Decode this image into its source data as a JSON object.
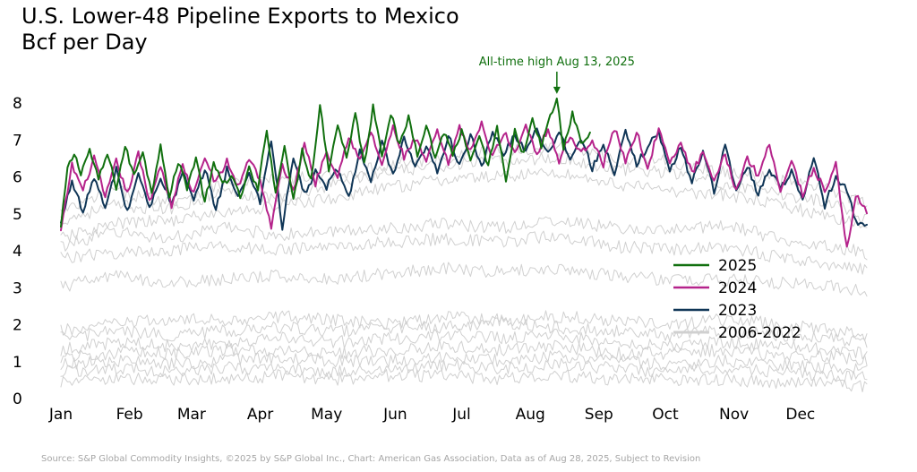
{
  "title_line1": "U.S. Lower-48 Pipeline Exports to Mexico",
  "title_line2": "Bcf per Day",
  "source": "Source: S&P Global Commodity Insights, ©2025 by S&P Global Inc., Chart: American Gas Association, Data as of Aug 28, 2025, Subject to Revision",
  "colors": {
    "2025": "#11700f",
    "2024": "#b5238b",
    "2023": "#0f3556",
    "historical": "#d0d0d0",
    "annotation": "#11700f"
  },
  "chart_data": {
    "type": "line",
    "ylim": [
      0,
      8
    ],
    "yticks": [
      "0",
      "1",
      "2",
      "3",
      "4",
      "5",
      "6",
      "7",
      "8"
    ],
    "xlim": [
      1,
      365
    ],
    "xticks": [
      {
        "label": "Jan",
        "day": 1
      },
      {
        "label": "Feb",
        "day": 32
      },
      {
        "label": "Mar",
        "day": 60
      },
      {
        "label": "Apr",
        "day": 91
      },
      {
        "label": "May",
        "day": 121
      },
      {
        "label": "Jun",
        "day": 152
      },
      {
        "label": "Jul",
        "day": 182
      },
      {
        "label": "Aug",
        "day": 213
      },
      {
        "label": "Sep",
        "day": 244
      },
      {
        "label": "Oct",
        "day": 274
      },
      {
        "label": "Nov",
        "day": 305
      },
      {
        "label": "Dec",
        "day": 335
      }
    ],
    "annotation": {
      "text": "All-time high Aug 13, 2025",
      "day": 225,
      "value": 8.1
    },
    "legend": {
      "position": "right",
      "entries": [
        {
          "label": "2025",
          "color": "#11700f"
        },
        {
          "label": "2024",
          "color": "#b5238b"
        },
        {
          "label": "2023",
          "color": "#0f3556"
        },
        {
          "label": "2006-2022",
          "color": "#d0d0d0"
        }
      ]
    },
    "series": [
      {
        "name": "2025",
        "color": "#11700f",
        "width": 2,
        "x": [
          1,
          4,
          7,
          10,
          14,
          18,
          22,
          26,
          30,
          34,
          38,
          42,
          46,
          50,
          54,
          58,
          62,
          66,
          70,
          74,
          78,
          82,
          86,
          90,
          94,
          98,
          102,
          106,
          110,
          114,
          118,
          122,
          126,
          130,
          134,
          138,
          142,
          146,
          150,
          154,
          158,
          162,
          166,
          170,
          174,
          178,
          182,
          186,
          190,
          194,
          198,
          202,
          206,
          210,
          214,
          218,
          222,
          225,
          228,
          232,
          236,
          240
        ],
        "y": [
          4.6,
          6.2,
          6.6,
          6.1,
          6.7,
          5.9,
          6.6,
          5.7,
          6.8,
          6.0,
          6.7,
          5.5,
          6.9,
          5.4,
          6.4,
          5.7,
          6.5,
          5.3,
          6.3,
          5.8,
          6.0,
          5.4,
          6.2,
          5.6,
          7.3,
          5.5,
          6.9,
          5.3,
          6.7,
          5.9,
          7.9,
          6.2,
          7.4,
          6.5,
          7.7,
          6.3,
          7.9,
          6.6,
          7.7,
          6.8,
          7.6,
          6.6,
          7.4,
          6.5,
          7.2,
          6.6,
          7.2,
          6.4,
          7.0,
          6.3,
          7.3,
          5.8,
          7.2,
          6.6,
          7.5,
          6.8,
          7.6,
          8.1,
          6.7,
          7.7,
          6.9,
          7.1
        ]
      },
      {
        "name": "2024",
        "color": "#b5238b",
        "width": 2,
        "x": [
          1,
          6,
          11,
          16,
          21,
          26,
          31,
          36,
          41,
          46,
          51,
          56,
          61,
          66,
          71,
          76,
          81,
          86,
          91,
          96,
          101,
          106,
          111,
          116,
          121,
          126,
          131,
          136,
          141,
          146,
          151,
          156,
          161,
          166,
          171,
          176,
          181,
          186,
          191,
          196,
          201,
          206,
          211,
          216,
          221,
          226,
          231,
          236,
          241,
          246,
          251,
          256,
          261,
          266,
          271,
          276,
          281,
          286,
          291,
          296,
          301,
          306,
          311,
          316,
          321,
          326,
          331,
          336,
          341,
          346,
          351,
          356,
          360,
          365
        ],
        "y": [
          4.5,
          6.3,
          5.6,
          6.5,
          5.4,
          6.4,
          5.5,
          6.6,
          5.3,
          6.3,
          5.2,
          6.3,
          5.5,
          6.5,
          5.8,
          6.4,
          5.7,
          6.5,
          5.9,
          4.6,
          6.3,
          5.6,
          6.9,
          5.8,
          6.7,
          6.0,
          7.1,
          6.4,
          7.2,
          6.3,
          7.3,
          6.5,
          7.0,
          6.4,
          7.2,
          6.3,
          7.3,
          6.7,
          7.4,
          6.5,
          7.2,
          6.6,
          7.4,
          6.6,
          7.3,
          6.4,
          7.1,
          6.6,
          7.0,
          6.3,
          7.3,
          6.4,
          7.2,
          6.2,
          7.3,
          6.3,
          6.9,
          6.1,
          6.6,
          5.8,
          6.6,
          5.6,
          6.5,
          6.0,
          6.9,
          5.6,
          6.4,
          5.5,
          6.2,
          5.6,
          6.3,
          4.0,
          5.5,
          5.0
        ]
      },
      {
        "name": "2023",
        "color": "#0f3556",
        "width": 2,
        "x": [
          1,
          6,
          11,
          16,
          21,
          26,
          31,
          36,
          41,
          46,
          51,
          56,
          61,
          66,
          71,
          76,
          81,
          86,
          91,
          96,
          101,
          106,
          111,
          116,
          121,
          126,
          131,
          136,
          141,
          146,
          151,
          156,
          161,
          166,
          171,
          176,
          181,
          186,
          191,
          196,
          201,
          206,
          211,
          216,
          221,
          226,
          231,
          236,
          241,
          246,
          251,
          256,
          261,
          266,
          271,
          276,
          281,
          286,
          291,
          296,
          301,
          306,
          311,
          316,
          321,
          326,
          331,
          336,
          341,
          346,
          351,
          356,
          360,
          365
        ],
        "y": [
          4.7,
          5.9,
          5.0,
          6.0,
          5.1,
          6.2,
          5.0,
          6.1,
          5.1,
          6.0,
          5.2,
          6.1,
          5.3,
          6.2,
          5.1,
          6.2,
          5.4,
          6.1,
          5.3,
          7.0,
          4.6,
          6.5,
          5.5,
          6.1,
          5.7,
          6.2,
          5.4,
          6.7,
          5.8,
          6.9,
          6.0,
          7.0,
          6.2,
          6.8,
          6.1,
          7.1,
          6.3,
          7.1,
          6.2,
          7.2,
          6.6,
          7.1,
          6.7,
          7.3,
          6.6,
          7.2,
          6.5,
          7.0,
          6.2,
          6.9,
          6.0,
          7.2,
          6.3,
          6.8,
          7.2,
          6.1,
          6.8,
          5.8,
          6.7,
          5.6,
          6.8,
          5.6,
          6.3,
          5.5,
          6.2,
          5.7,
          6.1,
          5.4,
          6.5,
          5.2,
          6.0,
          5.6,
          4.8,
          4.6
        ]
      },
      {
        "name": "",
        "color": "#d0d0d0",
        "width": 1,
        "x": [
          1,
          25,
          50,
          75,
          100,
          125,
          150,
          175,
          200,
          225,
          250,
          275,
          300,
          325,
          350,
          365
        ],
        "y": [
          5.0,
          5.6,
          5.3,
          5.8,
          5.9,
          6.0,
          6.3,
          6.5,
          6.7,
          6.8,
          6.5,
          6.4,
          6.1,
          5.9,
          5.6,
          5.2
        ]
      },
      {
        "name": "",
        "color": "#d0d0d0",
        "width": 1,
        "x": [
          1,
          25,
          50,
          75,
          100,
          125,
          150,
          175,
          200,
          225,
          250,
          275,
          300,
          325,
          350,
          365
        ],
        "y": [
          4.8,
          5.2,
          5.1,
          5.6,
          5.4,
          5.8,
          6.1,
          6.3,
          6.4,
          6.5,
          6.2,
          6.1,
          5.8,
          5.5,
          5.3,
          4.8
        ]
      },
      {
        "name": "",
        "color": "#d0d0d0",
        "width": 1,
        "x": [
          1,
          25,
          50,
          75,
          100,
          125,
          150,
          175,
          200,
          225,
          250,
          275,
          300,
          325,
          350,
          365
        ],
        "y": [
          4.3,
          4.7,
          4.8,
          5.0,
          5.2,
          5.4,
          5.7,
          5.9,
          6.0,
          6.1,
          5.8,
          5.6,
          5.5,
          5.2,
          4.9,
          4.6
        ]
      },
      {
        "name": "",
        "color": "#d0d0d0",
        "width": 1,
        "x": [
          1,
          25,
          50,
          75,
          100,
          125,
          150,
          175,
          200,
          225,
          250,
          275,
          300,
          325,
          350,
          365
        ],
        "y": [
          4.1,
          4.5,
          4.3,
          4.6,
          4.4,
          4.5,
          4.6,
          4.7,
          4.6,
          4.8,
          4.6,
          4.5,
          4.7,
          4.3,
          4.1,
          3.9
        ]
      },
      {
        "name": "",
        "color": "#d0d0d0",
        "width": 1,
        "x": [
          1,
          25,
          50,
          75,
          100,
          125,
          150,
          175,
          200,
          225,
          250,
          275,
          300,
          325,
          350,
          365
        ],
        "y": [
          3.8,
          3.9,
          4.0,
          4.1,
          4.0,
          4.1,
          4.2,
          4.3,
          4.2,
          4.4,
          4.1,
          4.0,
          4.1,
          3.8,
          3.6,
          3.5
        ]
      },
      {
        "name": "",
        "color": "#d0d0d0",
        "width": 1,
        "x": [
          1,
          25,
          50,
          75,
          100,
          125,
          150,
          175,
          200,
          225,
          250,
          275,
          300,
          325,
          350,
          365
        ],
        "y": [
          3.0,
          3.3,
          3.1,
          3.2,
          3.3,
          3.2,
          3.4,
          3.5,
          3.4,
          3.5,
          3.3,
          3.2,
          3.2,
          3.1,
          3.0,
          2.9
        ]
      },
      {
        "name": "",
        "color": "#d0d0d0",
        "width": 1,
        "x": [
          1,
          25,
          50,
          75,
          100,
          125,
          150,
          175,
          200,
          225,
          250,
          275,
          300,
          325,
          350,
          365
        ],
        "y": [
          1.8,
          2.0,
          2.1,
          2.1,
          2.2,
          2.1,
          2.0,
          2.2,
          2.1,
          2.2,
          2.1,
          2.0,
          2.1,
          2.0,
          1.8,
          1.7
        ]
      },
      {
        "name": "",
        "color": "#d0d0d0",
        "width": 1,
        "x": [
          1,
          25,
          50,
          75,
          100,
          125,
          150,
          175,
          200,
          225,
          250,
          275,
          300,
          325,
          350,
          365
        ],
        "y": [
          1.6,
          1.8,
          1.7,
          1.8,
          1.9,
          1.8,
          1.9,
          1.9,
          2.0,
          1.9,
          1.8,
          1.7,
          1.8,
          1.7,
          1.6,
          1.5
        ]
      },
      {
        "name": "",
        "color": "#d0d0d0",
        "width": 1,
        "x": [
          1,
          25,
          50,
          75,
          100,
          125,
          150,
          175,
          200,
          225,
          250,
          275,
          300,
          325,
          350,
          365
        ],
        "y": [
          1.3,
          1.5,
          1.4,
          1.5,
          1.6,
          1.5,
          1.6,
          1.7,
          1.6,
          1.7,
          1.5,
          1.4,
          1.5,
          1.4,
          1.3,
          1.2
        ]
      },
      {
        "name": "",
        "color": "#d0d0d0",
        "width": 1,
        "x": [
          1,
          25,
          50,
          75,
          100,
          125,
          150,
          175,
          200,
          225,
          250,
          275,
          300,
          325,
          350,
          365
        ],
        "y": [
          1.1,
          1.2,
          1.2,
          1.3,
          1.3,
          1.2,
          1.3,
          1.4,
          1.3,
          1.4,
          1.2,
          1.2,
          1.3,
          1.1,
          1.1,
          1.0
        ]
      },
      {
        "name": "",
        "color": "#d0d0d0",
        "width": 1,
        "x": [
          1,
          25,
          50,
          75,
          100,
          125,
          150,
          175,
          200,
          225,
          250,
          275,
          300,
          325,
          350,
          365
        ],
        "y": [
          0.9,
          1.0,
          0.9,
          1.0,
          1.1,
          1.0,
          1.0,
          1.1,
          1.0,
          1.1,
          1.0,
          0.9,
          1.0,
          0.9,
          0.8,
          0.8
        ]
      },
      {
        "name": "",
        "color": "#d0d0d0",
        "width": 1,
        "x": [
          1,
          25,
          50,
          75,
          100,
          125,
          150,
          175,
          200,
          225,
          250,
          275,
          300,
          325,
          350,
          365
        ],
        "y": [
          0.7,
          0.8,
          0.7,
          0.8,
          0.8,
          0.7,
          0.8,
          0.9,
          0.8,
          0.9,
          0.8,
          0.7,
          0.8,
          0.7,
          0.6,
          0.6
        ]
      },
      {
        "name": "",
        "color": "#d0d0d0",
        "width": 1,
        "x": [
          1,
          25,
          50,
          75,
          100,
          125,
          150,
          175,
          200,
          225,
          250,
          275,
          300,
          325,
          350,
          365
        ],
        "y": [
          0.4,
          0.5,
          0.5,
          0.5,
          0.6,
          0.5,
          0.6,
          0.6,
          0.5,
          0.6,
          0.5,
          0.5,
          0.5,
          0.4,
          0.4,
          0.3
        ]
      }
    ]
  }
}
